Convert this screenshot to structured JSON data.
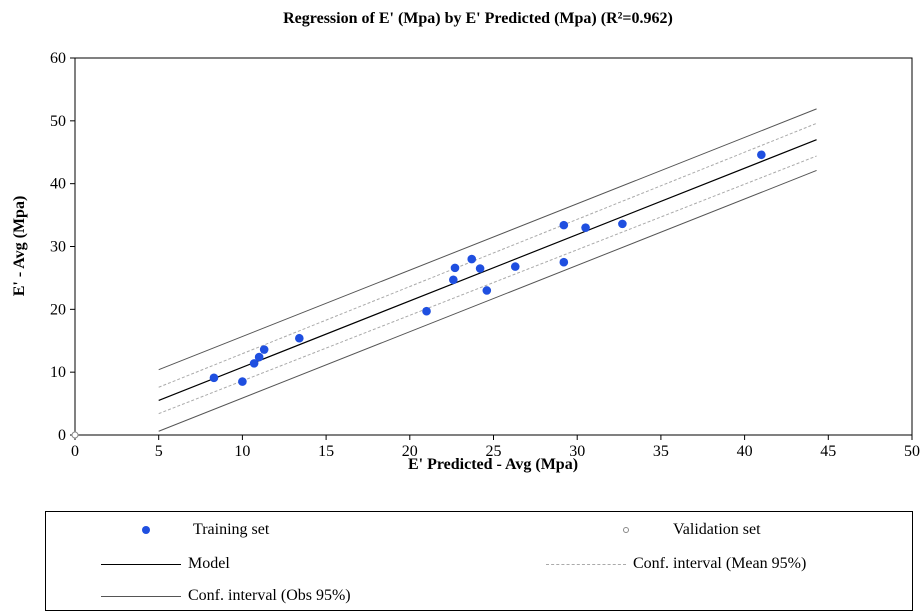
{
  "chart_data": {
    "type": "scatter",
    "title": "Regression of E' (Mpa) by E' Predicted (Mpa) (R²=0.962)",
    "xlabel": "E' Predicted - Avg (Mpa)",
    "ylabel": "E' - Avg (Mpa)",
    "xlim": [
      0,
      50
    ],
    "ylim": [
      0,
      60
    ],
    "xticks": [
      0,
      5,
      10,
      15,
      20,
      25,
      30,
      35,
      40,
      45,
      50
    ],
    "yticks": [
      0,
      10,
      20,
      30,
      40,
      50,
      60
    ],
    "grid": false,
    "series": [
      {
        "name": "Training set",
        "color": "#1f4fe0",
        "points": [
          [
            8.3,
            9.1
          ],
          [
            10.0,
            8.5
          ],
          [
            10.7,
            11.4
          ],
          [
            11.0,
            12.4
          ],
          [
            11.3,
            13.6
          ],
          [
            13.4,
            15.4
          ],
          [
            21.0,
            19.7
          ],
          [
            22.6,
            24.7
          ],
          [
            22.7,
            26.6
          ],
          [
            23.7,
            28.0
          ],
          [
            24.2,
            26.5
          ],
          [
            24.6,
            23.0
          ],
          [
            26.3,
            26.8
          ],
          [
            29.2,
            33.4
          ],
          [
            29.2,
            27.5
          ],
          [
            30.5,
            33.0
          ],
          [
            32.7,
            33.6
          ],
          [
            41.0,
            44.6
          ]
        ]
      },
      {
        "name": "Validation set",
        "color": "#888888",
        "points": [
          [
            0,
            0
          ]
        ]
      }
    ],
    "model": {
      "name": "Model",
      "from": [
        5,
        5.5
      ],
      "to": [
        44.3,
        47.0
      ]
    },
    "conf_mean": {
      "name": "Conf. interval (Mean 95%)",
      "offset_start": 2.1,
      "offset_end": 2.6
    },
    "conf_obs": {
      "name": "Conf. interval (Obs 95%)",
      "offset": 4.9
    },
    "legend_position": "bottom"
  },
  "legend": {
    "training": "Training set",
    "validation": "Validation set",
    "model": "Model",
    "conf_mean": "Conf. interval (Mean 95%)",
    "conf_obs": "Conf. interval (Obs 95%)"
  },
  "colors": {
    "training": "#1f4fe0",
    "model": "#000000",
    "conf_obs": "#555555",
    "conf_mean": "#aaaaaa"
  }
}
